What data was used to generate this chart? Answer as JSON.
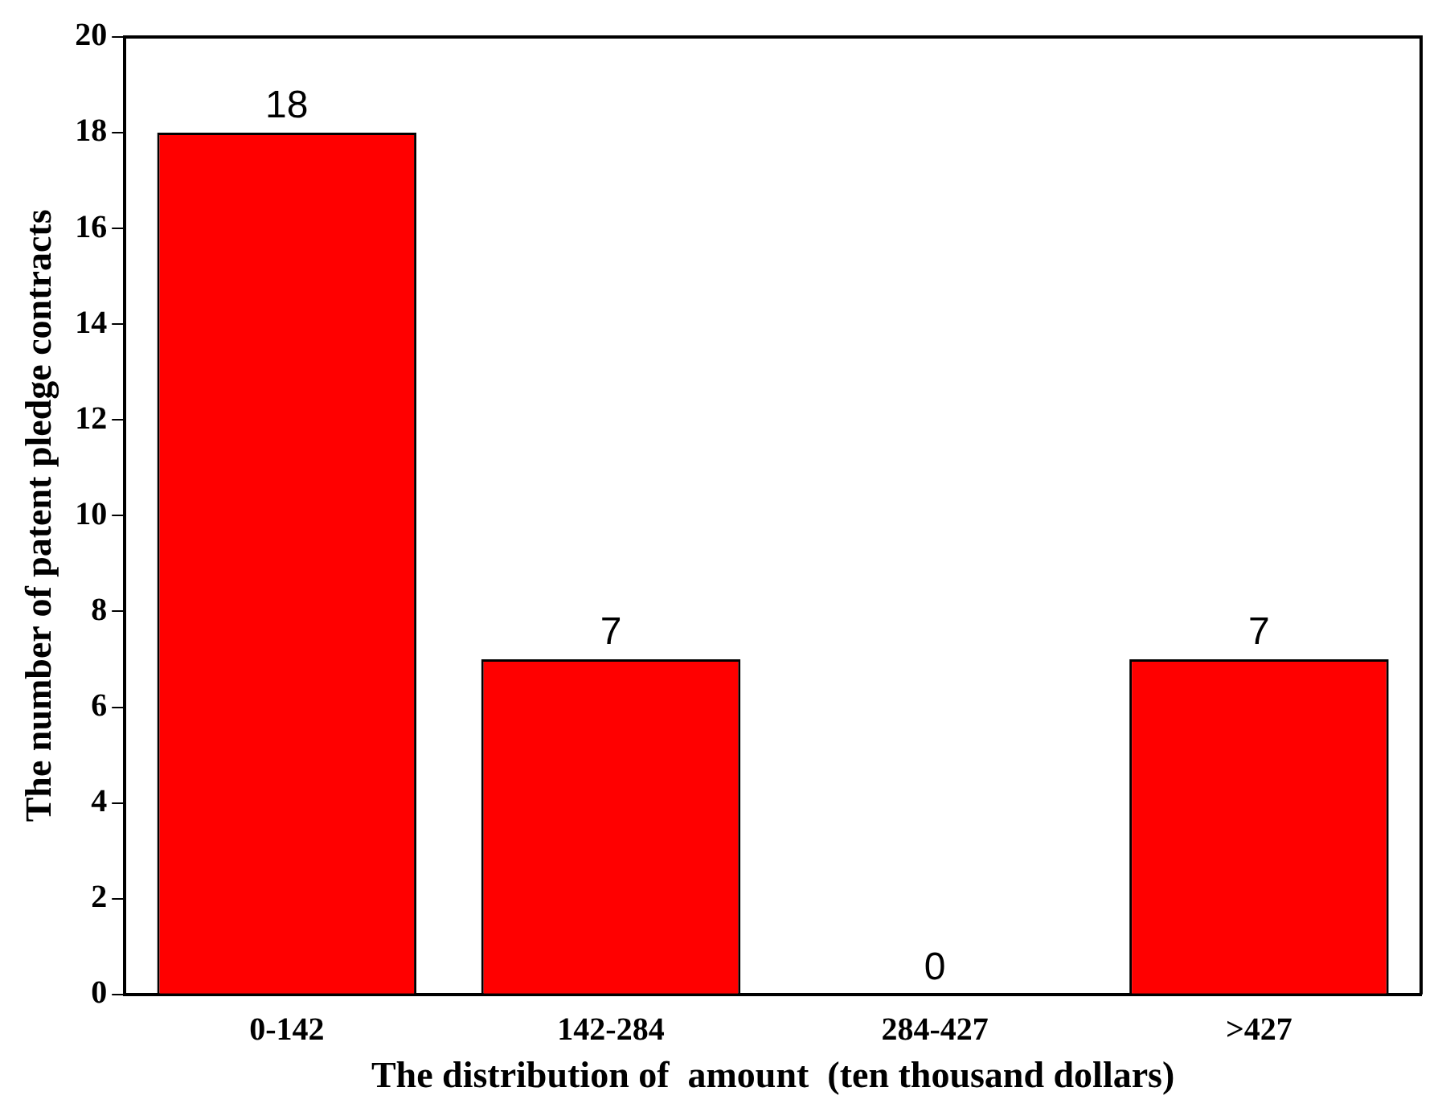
{
  "chart_data": {
    "type": "bar",
    "xlabel": "The distribution of  amount  (ten thousand dollars)",
    "ylabel": "The number of patent pledge contracts",
    "categories": [
      "0-142",
      "142-284",
      "284-427",
      ">427"
    ],
    "values": [
      18,
      7,
      0,
      7
    ],
    "color": "#ff0000",
    "ylim": [
      0,
      20
    ],
    "yticks": [
      0,
      2,
      4,
      6,
      8,
      10,
      12,
      14,
      16,
      18,
      20
    ],
    "grid": false,
    "legend": false,
    "data_labels": true
  }
}
